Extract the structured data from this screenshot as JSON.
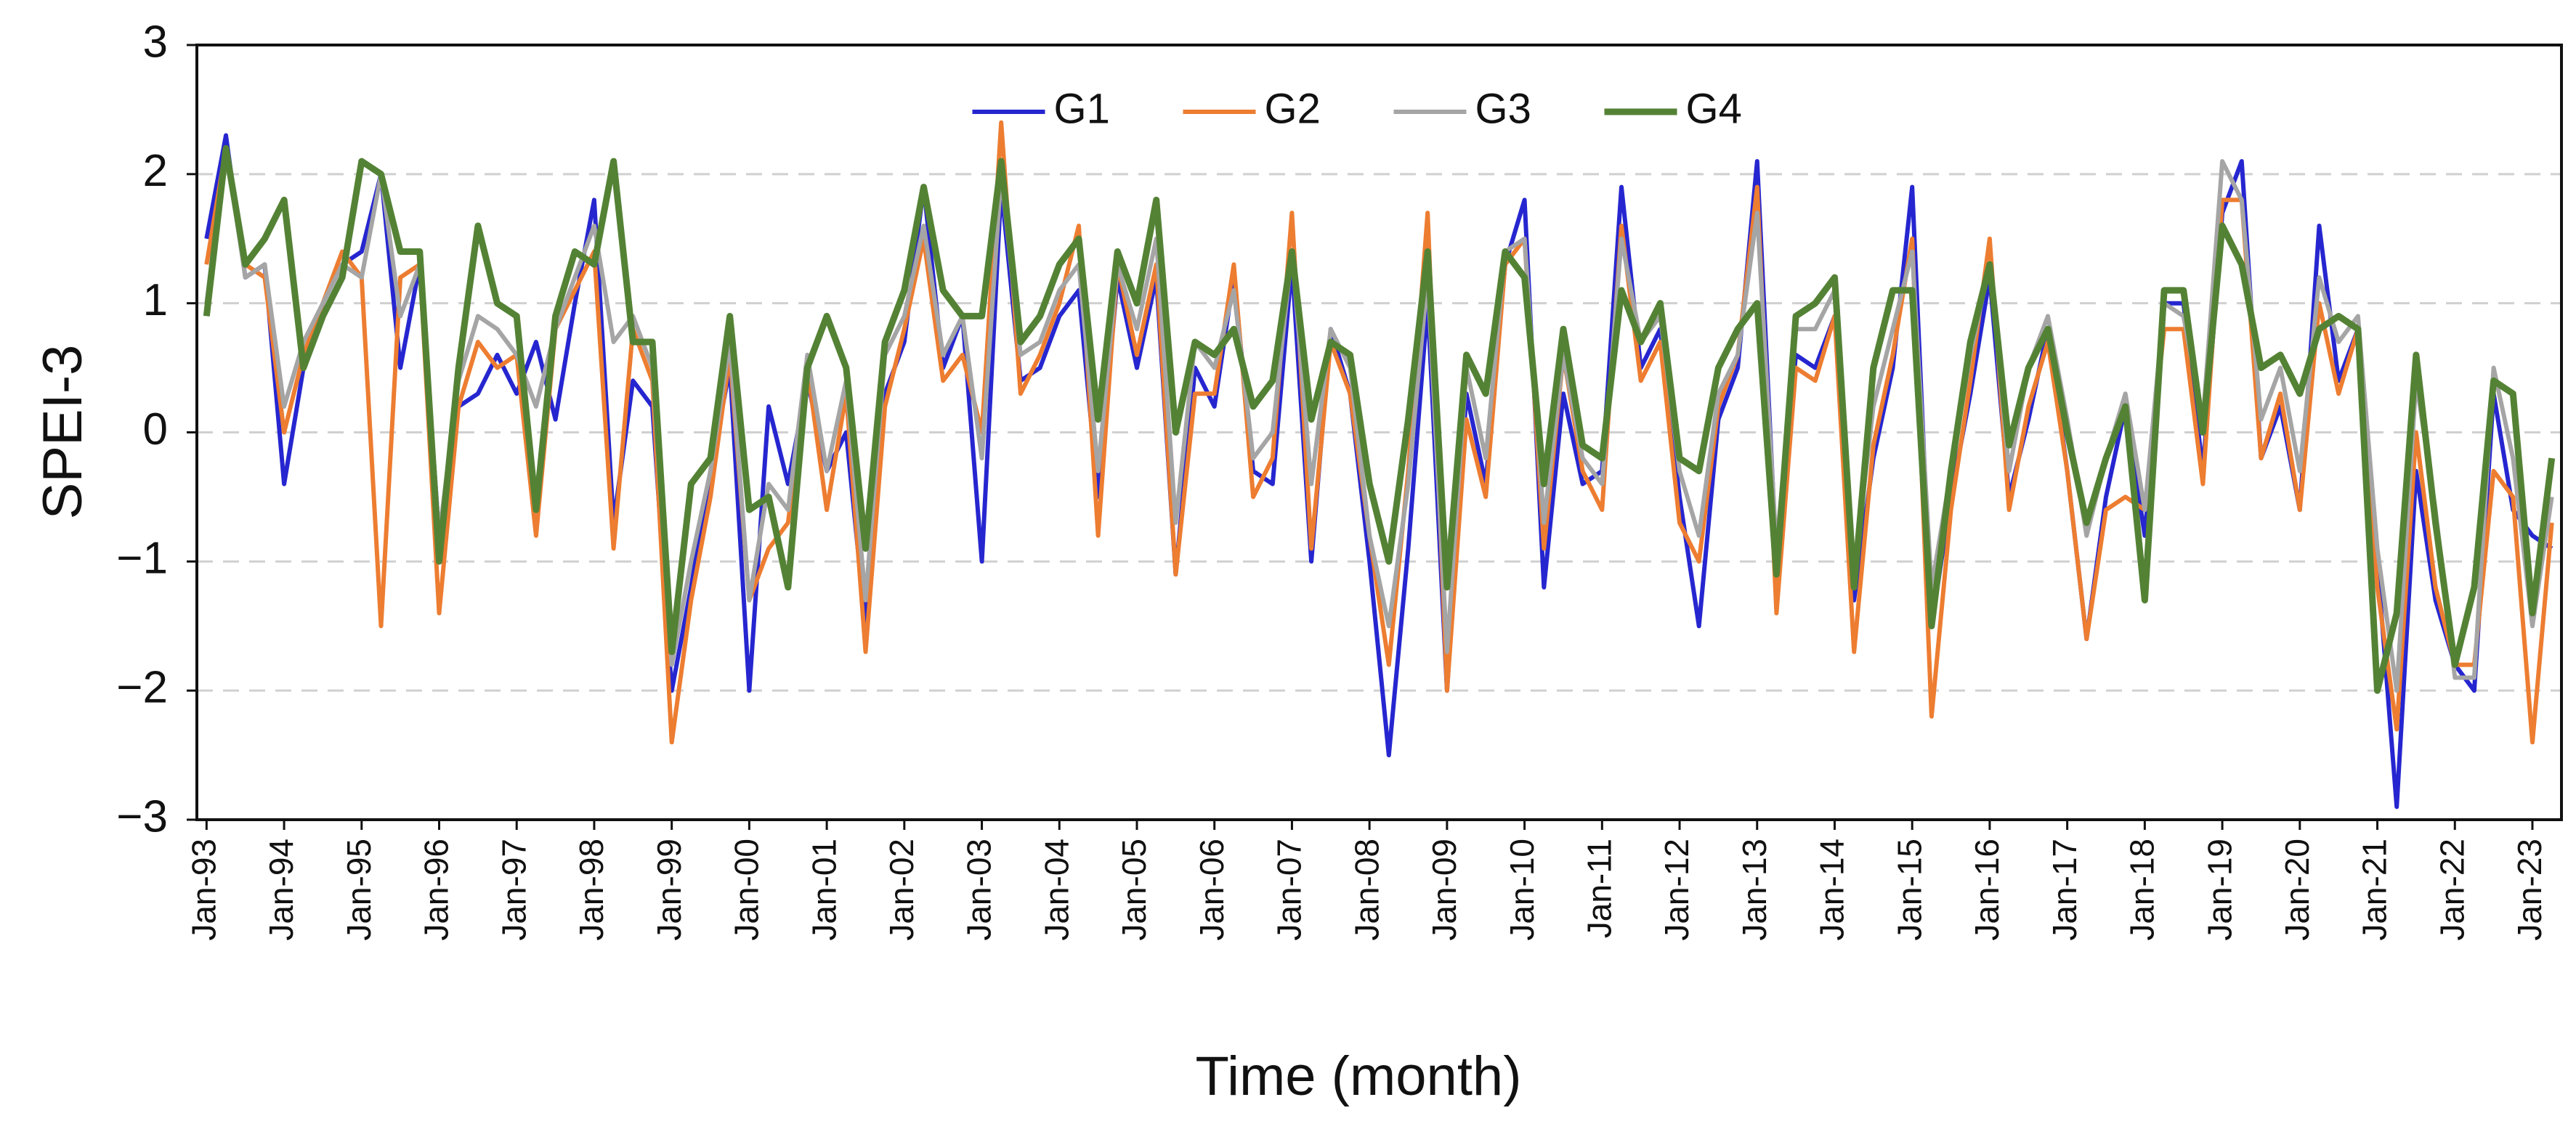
{
  "chart_data": {
    "type": "line",
    "x_label": "Time (month)",
    "y_label": "SPEI-3",
    "legend": "upper center",
    "grid": true,
    "ylim": [
      -3,
      3
    ],
    "yticks": [
      {
        "value": -3,
        "label": "−3"
      },
      {
        "value": -2,
        "label": "−2"
      },
      {
        "value": -1,
        "label": "−1"
      },
      0,
      1,
      2,
      3
    ],
    "categories": [
      "Jan-93",
      null,
      null,
      null,
      "Jan-94",
      null,
      null,
      null,
      "Jan-95",
      null,
      null,
      null,
      "Jan-96",
      null,
      null,
      null,
      "Jan-97",
      null,
      null,
      null,
      "Jan-98",
      null,
      null,
      null,
      "Jan-99",
      null,
      null,
      null,
      "Jan-00",
      null,
      null,
      null,
      "Jan-01",
      null,
      null,
      null,
      "Jan-02",
      null,
      null,
      null,
      "Jan-03",
      null,
      null,
      null,
      "Jan-04",
      null,
      null,
      null,
      "Jan-05",
      null,
      null,
      null,
      "Jan-06",
      null,
      null,
      null,
      "Jan-07",
      null,
      null,
      null,
      "Jan-08",
      null,
      null,
      null,
      "Jan-09",
      null,
      null,
      null,
      "Jan-10",
      null,
      null,
      null,
      "Jan-11",
      null,
      null,
      null,
      "Jan-12",
      null,
      null,
      null,
      "Jan-13",
      null,
      null,
      null,
      "Jan-14",
      null,
      null,
      null,
      "Jan-15",
      null,
      null,
      null,
      "Jan-16",
      null,
      null,
      null,
      "Jan-17",
      null,
      null,
      null,
      "Jan-18",
      null,
      null,
      null,
      "Jan-19",
      null,
      null,
      null,
      "Jan-20",
      null,
      null,
      null,
      "Jan-21",
      null,
      null,
      null,
      "Jan-22",
      null,
      null,
      null,
      "Jan-23",
      null
    ],
    "series": [
      {
        "name": "G1",
        "color": "#2626d0",
        "values": [
          1.5,
          2.3,
          1.2,
          1.3,
          -0.4,
          0.5,
          1.0,
          1.3,
          1.4,
          2.0,
          0.5,
          1.3,
          -0.8,
          0.2,
          0.3,
          0.6,
          0.3,
          0.7,
          0.1,
          1.0,
          1.8,
          -0.7,
          0.4,
          0.2,
          -2.0,
          -1.2,
          -0.3,
          0.5,
          -2.0,
          0.2,
          -0.4,
          0.4,
          -0.3,
          0.0,
          -1.5,
          0.3,
          0.7,
          1.9,
          0.5,
          0.9,
          -1.0,
          1.9,
          0.4,
          0.5,
          0.9,
          1.1,
          -0.5,
          1.2,
          0.5,
          1.2,
          -1.1,
          0.5,
          0.2,
          1.2,
          -0.3,
          -0.4,
          1.3,
          -1.0,
          0.8,
          0.3,
          -1.0,
          -2.5,
          -0.9,
          1.0,
          -2.0,
          0.3,
          -0.4,
          1.3,
          1.8,
          -1.2,
          0.3,
          -0.4,
          -0.3,
          1.9,
          0.5,
          0.8,
          -0.5,
          -1.5,
          0.1,
          0.5,
          2.1,
          -1.0,
          0.6,
          0.5,
          0.9,
          -1.3,
          -0.2,
          0.5,
          1.9,
          -1.5,
          -0.5,
          0.3,
          1.2,
          -0.5,
          0.1,
          0.8,
          -0.3,
          -1.6,
          -0.5,
          0.2,
          -0.8,
          1.0,
          1.0,
          -0.3,
          1.7,
          2.1,
          -0.2,
          0.2,
          -0.6,
          1.6,
          0.4,
          0.8,
          -1.0,
          -2.9,
          -0.3,
          -1.3,
          -1.8,
          -2.0,
          0.3,
          -0.6,
          -0.8,
          -0.9
        ]
      },
      {
        "name": "G2",
        "color": "#ed7d31",
        "values": [
          1.3,
          2.2,
          1.3,
          1.2,
          0.0,
          0.6,
          1.0,
          1.4,
          1.2,
          -1.5,
          1.2,
          1.3,
          -1.4,
          0.2,
          0.7,
          0.5,
          0.6,
          -0.8,
          0.8,
          1.1,
          1.4,
          -0.9,
          0.8,
          0.4,
          -2.4,
          -1.3,
          -0.5,
          0.6,
          -1.3,
          -0.9,
          -0.7,
          0.5,
          -0.6,
          0.3,
          -1.7,
          0.2,
          0.8,
          1.5,
          0.4,
          0.6,
          0.0,
          2.4,
          0.3,
          0.6,
          1.0,
          1.6,
          -0.8,
          1.3,
          0.6,
          1.3,
          -1.1,
          0.3,
          0.3,
          1.3,
          -0.5,
          -0.2,
          1.7,
          -0.9,
          0.7,
          0.3,
          -0.8,
          -1.8,
          -0.3,
          1.7,
          -2.0,
          0.1,
          -0.5,
          1.3,
          1.5,
          -0.9,
          0.6,
          -0.3,
          -0.6,
          1.6,
          0.4,
          0.7,
          -0.7,
          -1.0,
          0.2,
          0.6,
          1.9,
          -1.4,
          0.5,
          0.4,
          0.9,
          -1.7,
          -0.1,
          0.6,
          1.5,
          -2.2,
          -0.6,
          0.4,
          1.5,
          -0.6,
          0.2,
          0.7,
          -0.3,
          -1.6,
          -0.6,
          -0.5,
          -0.6,
          0.8,
          0.8,
          -0.4,
          1.8,
          1.8,
          -0.2,
          0.3,
          -0.6,
          1.0,
          0.3,
          0.8,
          -1.2,
          -2.3,
          0.0,
          -1.2,
          -1.8,
          -1.8,
          -0.3,
          -0.5,
          -2.4,
          -0.7
        ]
      },
      {
        "name": "G3",
        "color": "#a5a5a5",
        "values": [
          1.0,
          2.2,
          1.2,
          1.3,
          0.2,
          0.7,
          1.0,
          1.3,
          1.2,
          2.0,
          0.9,
          1.3,
          -0.8,
          0.4,
          0.9,
          0.8,
          0.6,
          0.2,
          0.8,
          1.2,
          1.6,
          0.7,
          0.9,
          0.5,
          -1.8,
          -1.0,
          -0.3,
          0.7,
          -1.3,
          -0.4,
          -0.6,
          0.6,
          -0.3,
          0.4,
          -1.3,
          0.6,
          0.9,
          1.6,
          0.6,
          0.9,
          -0.2,
          2.0,
          0.6,
          0.7,
          1.1,
          1.3,
          -0.3,
          1.3,
          0.8,
          1.5,
          -0.7,
          0.7,
          0.5,
          1.1,
          -0.2,
          0.0,
          1.4,
          -0.4,
          0.8,
          0.5,
          -0.8,
          -1.5,
          -0.4,
          1.2,
          -1.7,
          0.5,
          -0.2,
          1.4,
          1.5,
          -0.7,
          0.6,
          -0.2,
          -0.4,
          1.5,
          0.7,
          0.9,
          -0.3,
          -0.8,
          0.3,
          0.6,
          1.7,
          -0.9,
          0.8,
          0.8,
          1.1,
          -1.1,
          0.2,
          0.8,
          1.4,
          -1.2,
          -0.3,
          0.6,
          1.3,
          -0.3,
          0.5,
          0.9,
          0.1,
          -0.8,
          -0.2,
          0.3,
          -0.6,
          1.0,
          0.9,
          0.1,
          2.1,
          1.8,
          0.1,
          0.5,
          -0.3,
          1.2,
          0.7,
          0.9,
          -0.9,
          -2.0,
          0.4,
          -0.6,
          -1.9,
          -1.9,
          0.5,
          -0.2,
          -1.5,
          -0.5
        ]
      },
      {
        "name": "G4",
        "color": "#548235",
        "values": [
          0.9,
          2.2,
          1.3,
          1.5,
          1.8,
          0.5,
          0.9,
          1.2,
          2.1,
          2.0,
          1.4,
          1.4,
          -1.0,
          0.5,
          1.6,
          1.0,
          0.9,
          -0.6,
          0.9,
          1.4,
          1.3,
          2.1,
          0.7,
          0.7,
          -1.7,
          -0.4,
          -0.2,
          0.9,
          -0.6,
          -0.5,
          -1.2,
          0.5,
          0.9,
          0.5,
          -0.9,
          0.7,
          1.1,
          1.9,
          1.1,
          0.9,
          0.9,
          2.1,
          0.7,
          0.9,
          1.3,
          1.5,
          0.1,
          1.4,
          1.0,
          1.8,
          0.0,
          0.7,
          0.6,
          0.8,
          0.2,
          0.4,
          1.4,
          0.1,
          0.7,
          0.6,
          -0.4,
          -1.0,
          0.1,
          1.4,
          -1.2,
          0.6,
          0.3,
          1.4,
          1.2,
          -0.4,
          0.8,
          -0.1,
          -0.2,
          1.1,
          0.7,
          1.0,
          -0.2,
          -0.3,
          0.5,
          0.8,
          1.0,
          -1.1,
          0.9,
          1.0,
          1.2,
          -1.2,
          0.5,
          1.1,
          1.1,
          -1.5,
          -0.3,
          0.7,
          1.3,
          -0.1,
          0.5,
          0.8,
          0.0,
          -0.7,
          -0.2,
          0.2,
          -1.3,
          1.1,
          1.1,
          0.0,
          1.6,
          1.3,
          0.5,
          0.6,
          0.3,
          0.8,
          0.9,
          0.8,
          -2.0,
          -1.4,
          0.6,
          -0.7,
          -1.8,
          -1.2,
          0.4,
          0.3,
          -1.4,
          -0.2
        ]
      }
    ]
  }
}
